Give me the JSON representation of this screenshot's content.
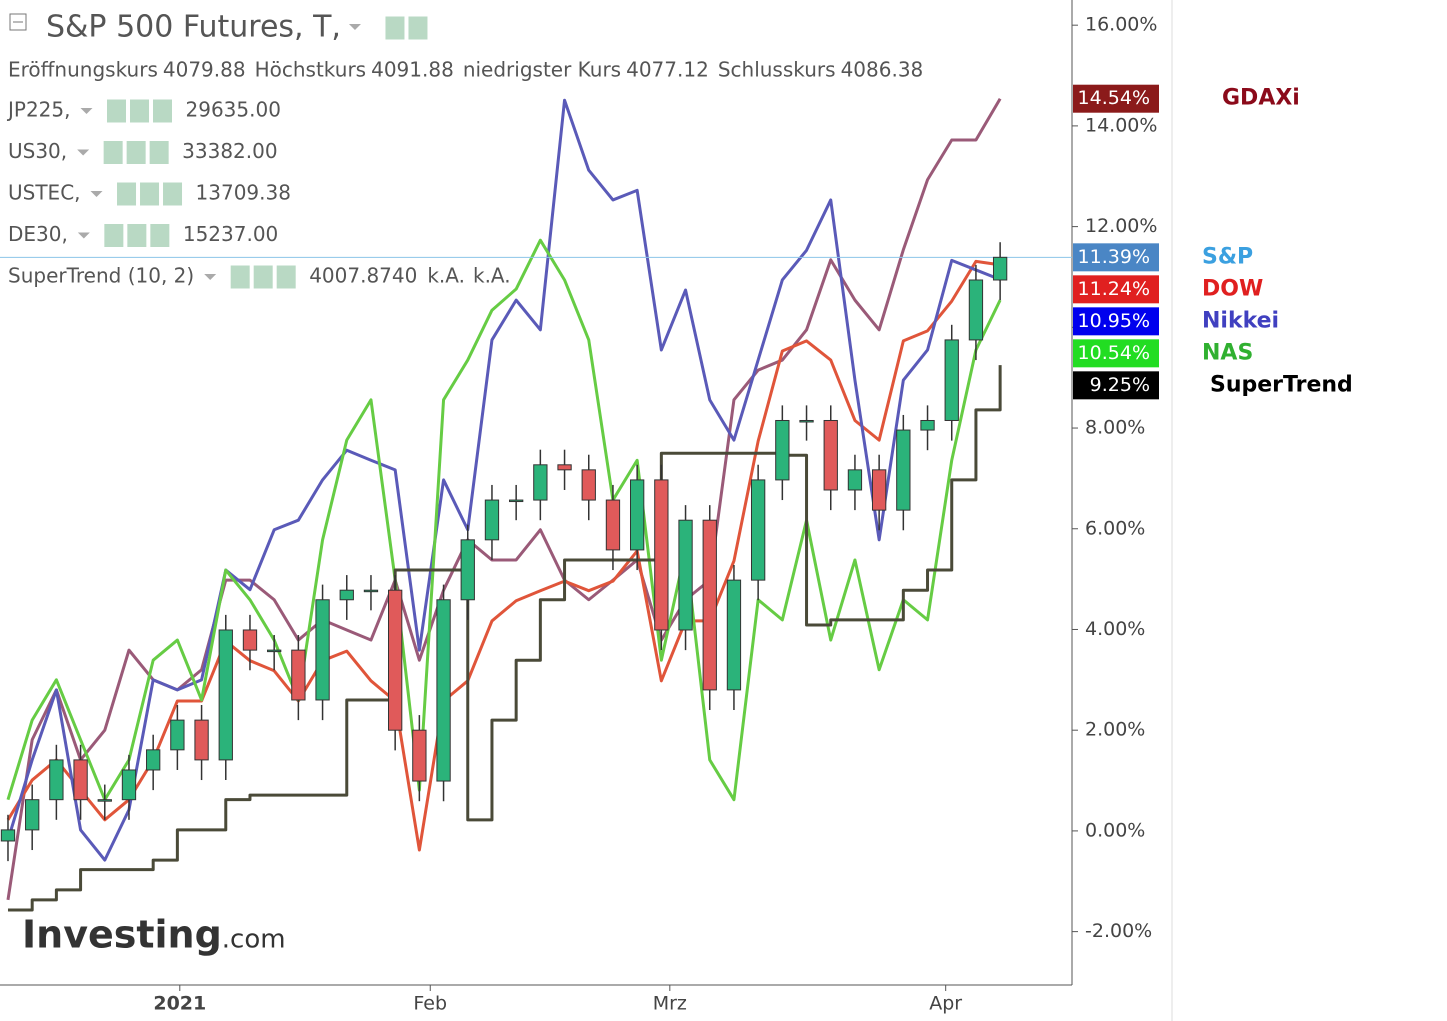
{
  "header": {
    "title": "S&P 500 Futures, T,",
    "ohlc": [
      {
        "label": "Eröffnungskurs",
        "value": "4079.88"
      },
      {
        "label": "Höchstkurs",
        "value": "4091.88"
      },
      {
        "label": "niedrigster Kurs",
        "value": "4077.12"
      },
      {
        "label": "Schlusskurs",
        "value": "4086.38"
      }
    ],
    "legend_rows": [
      {
        "symbol": "JP225,",
        "value": "29635.00",
        "color": "#0000cc"
      },
      {
        "symbol": "US30,",
        "value": "33382.00",
        "color": "#cc0000"
      },
      {
        "symbol": "USTEC,",
        "value": "13709.38",
        "color": "#00cc00"
      },
      {
        "symbol": "DE30,",
        "value": "15237.00",
        "color": "#800000"
      },
      {
        "symbol": "SuperTrend (10, 2)",
        "value": "4007.8740",
        "color": "#000000",
        "extra": [
          "k.A.",
          "k.A."
        ]
      }
    ]
  },
  "watermark": [
    "Investing",
    ".com"
  ],
  "chart_data": {
    "type": "candlestick",
    "x": [
      0,
      2,
      4,
      6,
      8,
      10,
      12,
      14,
      16,
      18,
      20,
      22,
      24,
      26,
      28,
      30,
      32,
      34,
      36,
      38,
      40,
      42,
      44,
      46,
      48,
      50,
      52,
      54,
      56,
      58,
      60,
      62,
      64,
      66,
      68,
      70,
      72,
      74,
      76,
      78,
      80,
      82
    ],
    "xlim": [
      -0.66,
      87.94
    ],
    "xticks": [
      {
        "value": 14.2,
        "label": "2021"
      },
      {
        "value": 34.9,
        "label": "Feb"
      },
      {
        "value": 54.7,
        "label": "Mrz"
      },
      {
        "value": 77.5,
        "label": "Apr"
      }
    ],
    "ylim": [
      -3.06,
      16.5
    ],
    "yticks": [
      {
        "value": -2,
        "label": "-2.00%"
      },
      {
        "value": 0,
        "label": "0.00%"
      },
      {
        "value": 2,
        "label": "2.00%"
      },
      {
        "value": 4,
        "label": "4.00%"
      },
      {
        "value": 6,
        "label": "6.00%"
      },
      {
        "value": 8,
        "label": "8.00%"
      },
      {
        "value": 10,
        "label": "10.00%"
      },
      {
        "value": 12,
        "label": "12.00%"
      },
      {
        "value": 14,
        "label": "14.00%"
      },
      {
        "value": 16,
        "label": "16.00%"
      }
    ],
    "candles": {
      "name": "S&P",
      "name_color": "#3ba0e0",
      "box_color": "#4a86c5",
      "up_color": "#2bb37a",
      "down_color": "#e05a5a",
      "last_value_label": "11.39%",
      "open": [
        -0.2,
        0.02,
        0.62,
        1.41,
        0.62,
        0.62,
        1.21,
        1.61,
        2.2,
        1.41,
        3.99,
        3.59,
        3.59,
        2.6,
        4.59,
        4.78,
        4.78,
        2.0,
        0.99,
        4.59,
        5.78,
        6.57,
        6.57,
        7.27,
        7.17,
        6.57,
        5.58,
        6.97,
        3.99,
        6.17,
        2.8,
        4.98,
        6.97,
        8.15,
        8.15,
        6.77,
        7.17,
        6.37,
        7.96,
        8.15,
        9.75,
        10.94
      ],
      "high": [
        0.32,
        0.92,
        1.71,
        1.71,
        0.92,
        1.51,
        1.91,
        2.5,
        2.5,
        4.29,
        4.29,
        3.89,
        3.89,
        4.89,
        5.08,
        5.08,
        5.08,
        2.3,
        4.89,
        6.08,
        6.87,
        6.87,
        7.57,
        7.57,
        7.47,
        6.87,
        7.27,
        7.27,
        6.47,
        6.47,
        5.28,
        7.27,
        8.45,
        8.45,
        8.45,
        7.47,
        7.47,
        8.26,
        8.45,
        10.05,
        11.24,
        11.69
      ],
      "low": [
        -0.6,
        -0.38,
        0.22,
        0.22,
        0.22,
        0.22,
        0.81,
        1.21,
        1.01,
        1.01,
        3.19,
        3.19,
        2.2,
        2.2,
        4.19,
        4.38,
        1.6,
        0.59,
        0.59,
        4.19,
        5.38,
        6.17,
        6.17,
        6.77,
        6.17,
        5.18,
        5.18,
        3.59,
        3.59,
        2.4,
        2.4,
        4.58,
        6.57,
        7.75,
        6.37,
        6.37,
        5.97,
        5.97,
        7.56,
        7.75,
        9.35,
        10.54
      ],
      "close": [
        0.02,
        0.62,
        1.41,
        0.62,
        0.62,
        1.21,
        1.61,
        2.2,
        1.41,
        3.99,
        3.59,
        3.59,
        2.6,
        4.59,
        4.78,
        4.78,
        2.0,
        0.99,
        4.59,
        5.78,
        6.57,
        6.57,
        7.27,
        7.17,
        6.57,
        5.58,
        6.97,
        3.99,
        6.17,
        2.8,
        4.98,
        6.97,
        8.15,
        8.15,
        6.77,
        7.17,
        6.37,
        7.96,
        8.15,
        9.75,
        10.94,
        11.39
      ]
    },
    "series": [
      {
        "name": "GDAXi",
        "color": "#9a5a78",
        "name_color": "#8b0a1a",
        "box_color": "#8b1a1a",
        "last_value_label": "14.54%",
        "values": [
          -1.37,
          1.81,
          2.8,
          1.41,
          2.0,
          3.59,
          3.0,
          2.8,
          3.2,
          4.98,
          4.98,
          4.59,
          3.79,
          4.19,
          3.99,
          3.79,
          4.98,
          3.39,
          4.78,
          5.78,
          5.38,
          5.38,
          5.98,
          4.98,
          4.59,
          4.98,
          5.38,
          3.79,
          4.59,
          4.98,
          8.56,
          9.15,
          9.35,
          9.95,
          11.34,
          10.54,
          9.95,
          11.54,
          12.93,
          13.72,
          13.72,
          14.54
        ]
      },
      {
        "name": "DOW",
        "color": "#e0553a",
        "name_color": "#e02020",
        "box_color": "#e02020",
        "last_value_label": "11.24%",
        "values": [
          0.22,
          1.01,
          1.41,
          0.81,
          0.22,
          0.62,
          1.41,
          2.58,
          2.58,
          3.77,
          3.38,
          3.18,
          2.58,
          3.38,
          3.57,
          2.98,
          2.58,
          -0.38,
          2.58,
          2.98,
          4.17,
          4.57,
          4.77,
          4.96,
          4.77,
          4.96,
          5.56,
          2.98,
          4.17,
          4.17,
          5.36,
          7.74,
          9.53,
          9.73,
          9.35,
          8.15,
          7.76,
          9.73,
          9.93,
          10.52,
          11.31,
          11.24
        ]
      },
      {
        "name": "Nikkei",
        "color": "#5a5ab8",
        "name_color": "#4040c0",
        "box_color": "#0000ee",
        "last_value_label": "10.95%",
        "values": [
          -0.18,
          1.41,
          2.8,
          0.02,
          -0.58,
          0.42,
          3.0,
          2.8,
          3.0,
          5.18,
          4.79,
          5.98,
          6.17,
          6.97,
          7.56,
          7.36,
          7.17,
          3.59,
          6.97,
          5.98,
          9.75,
          10.54,
          9.95,
          14.51,
          13.12,
          12.53,
          12.72,
          9.55,
          10.74,
          8.56,
          7.76,
          9.35,
          10.94,
          11.53,
          12.53,
          8.95,
          5.78,
          8.95,
          9.55,
          11.33,
          11.14,
          10.95
        ]
      },
      {
        "name": "NAS",
        "color": "#66cc44",
        "name_color": "#30b030",
        "box_color": "#22dd22",
        "last_value_label": "10.54%",
        "values": [
          0.62,
          2.2,
          3.0,
          1.81,
          0.62,
          1.41,
          3.39,
          3.79,
          2.6,
          5.18,
          4.59,
          3.79,
          2.6,
          5.78,
          7.76,
          8.56,
          4.99,
          0.81,
          8.56,
          9.35,
          10.34,
          10.76,
          11.73,
          10.94,
          9.75,
          6.57,
          7.36,
          3.39,
          5.58,
          1.41,
          0.62,
          4.59,
          4.19,
          6.17,
          3.79,
          5.38,
          3.2,
          4.59,
          4.19,
          7.36,
          9.55,
          10.54
        ]
      },
      {
        "name": "SuperTrend",
        "color": "#4a4a38",
        "name_color": "#000000",
        "box_color": "#000000",
        "last_value_label": "9.25%",
        "step": true,
        "values": [
          -1.57,
          -1.37,
          -1.17,
          -0.77,
          -0.77,
          -0.77,
          -0.58,
          0.02,
          0.02,
          0.62,
          0.71,
          0.71,
          0.71,
          0.71,
          2.6,
          2.6,
          5.18,
          5.18,
          5.18,
          0.22,
          2.2,
          3.39,
          4.59,
          5.38,
          5.38,
          5.38,
          5.38,
          7.5,
          7.5,
          7.5,
          7.5,
          7.5,
          7.46,
          4.09,
          4.19,
          4.19,
          4.19,
          4.78,
          5.18,
          6.97,
          8.36,
          9.25
        ]
      }
    ]
  }
}
